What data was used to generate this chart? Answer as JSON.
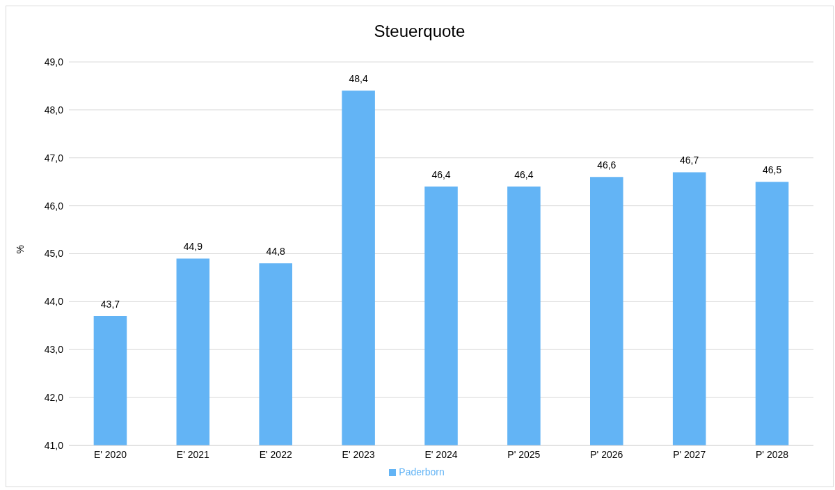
{
  "chart_data": {
    "type": "bar",
    "title": "Steuerquote",
    "ylabel": "%",
    "categories": [
      "E' 2020",
      "E' 2021",
      "E' 2022",
      "E' 2023",
      "E' 2024",
      "P' 2025",
      "P' 2026",
      "P' 2027",
      "P' 2028"
    ],
    "series": [
      {
        "name": "Paderborn",
        "color": "#63b4f5",
        "values": [
          43.7,
          44.9,
          44.8,
          48.4,
          46.4,
          46.4,
          46.6,
          46.7,
          46.5
        ],
        "value_labels": [
          "43,7",
          "44,9",
          "44,8",
          "48,4",
          "46,4",
          "46,4",
          "46,6",
          "46,7",
          "46,5"
        ]
      }
    ],
    "ylim": [
      41,
      49
    ],
    "yticks": [
      {
        "value": 41,
        "label": "41,0"
      },
      {
        "value": 42,
        "label": "42,0"
      },
      {
        "value": 43,
        "label": "43,0"
      },
      {
        "value": 44,
        "label": "44,0"
      },
      {
        "value": 45,
        "label": "45,0"
      },
      {
        "value": 46,
        "label": "46,0"
      },
      {
        "value": 47,
        "label": "47,0"
      },
      {
        "value": 48,
        "label": "48,0"
      },
      {
        "value": 49,
        "label": "49,0"
      }
    ],
    "grid": "y",
    "legend": "bottom"
  }
}
